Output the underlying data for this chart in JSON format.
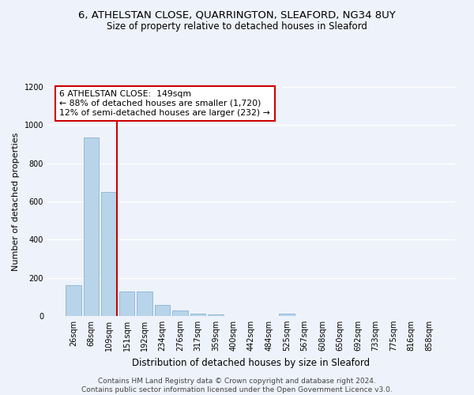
{
  "title": "6, ATHELSTAN CLOSE, QUARRINGTON, SLEAFORD, NG34 8UY",
  "subtitle": "Size of property relative to detached houses in Sleaford",
  "xlabel": "Distribution of detached houses by size in Sleaford",
  "ylabel": "Number of detached properties",
  "categories": [
    "26sqm",
    "68sqm",
    "109sqm",
    "151sqm",
    "192sqm",
    "234sqm",
    "276sqm",
    "317sqm",
    "359sqm",
    "400sqm",
    "442sqm",
    "484sqm",
    "525sqm",
    "567sqm",
    "608sqm",
    "650sqm",
    "692sqm",
    "733sqm",
    "775sqm",
    "816sqm",
    "858sqm"
  ],
  "values": [
    160,
    935,
    650,
    130,
    130,
    57,
    30,
    13,
    10,
    0,
    0,
    0,
    13,
    0,
    0,
    0,
    0,
    0,
    0,
    0,
    0
  ],
  "bar_color": "#b8d4ea",
  "bar_edge_color": "#8ab4d4",
  "annotation_box_text": "6 ATHELSTAN CLOSE:  149sqm\n← 88% of detached houses are smaller (1,720)\n12% of semi-detached houses are larger (232) →",
  "annotation_box_color": "#ffffff",
  "annotation_box_edge_color": "#cc0000",
  "vline_color": "#cc0000",
  "ylim": [
    0,
    1200
  ],
  "yticks": [
    0,
    200,
    400,
    600,
    800,
    1000,
    1200
  ],
  "background_color": "#eef2fa",
  "grid_color": "#ffffff",
  "footer": "Contains HM Land Registry data © Crown copyright and database right 2024.\nContains public sector information licensed under the Open Government Licence v3.0.",
  "title_fontsize": 9.5,
  "subtitle_fontsize": 8.5,
  "xlabel_fontsize": 8.5,
  "ylabel_fontsize": 8,
  "tick_fontsize": 7,
  "annotation_fontsize": 7.8,
  "footer_fontsize": 6.5
}
